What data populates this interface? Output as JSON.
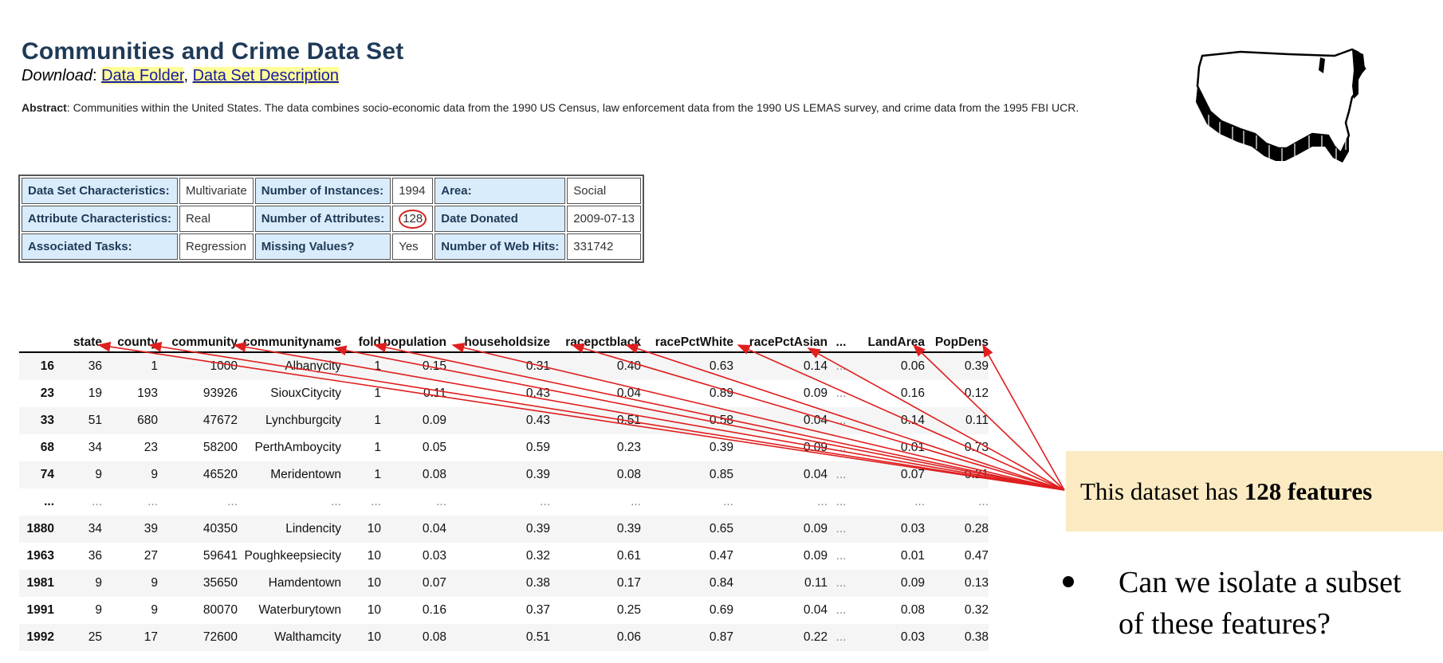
{
  "page": {
    "title": "Communities and Crime Data Set",
    "download_label": "Download",
    "download_links": [
      "Data Folder",
      "Data Set Description"
    ],
    "abstract_label": "Abstract",
    "abstract_text": ": Communities within the United States. The data combines socio-economic data from the 1990 US Census, law enforcement data from the 1990 US LEMAS survey, and crime data from the 1995 FBI UCR."
  },
  "info_table": {
    "rows": [
      [
        "Data Set Characteristics:",
        "Multivariate",
        "Number of Instances:",
        "1994",
        "Area:",
        "Social"
      ],
      [
        "Attribute Characteristics:",
        "Real",
        "Number of Attributes:",
        "128",
        "Date Donated",
        "2009-07-13"
      ],
      [
        "Associated Tasks:",
        "Regression",
        "Missing Values?",
        "Yes",
        "Number of Web Hits:",
        "331742"
      ]
    ],
    "highlight_color": "#d62020"
  },
  "dataframe": {
    "columns": [
      "",
      "state",
      "county",
      "community",
      "communityname",
      "fold",
      "population",
      "householdsize",
      "racepctblack",
      "racePctWhite",
      "racePctAsian",
      "...",
      "LandArea",
      "PopDens"
    ],
    "rows": [
      [
        "16",
        "36",
        "1",
        "1000",
        "Albanycity",
        "1",
        "0.15",
        "0.31",
        "0.40",
        "0.63",
        "0.14",
        "...",
        "0.06",
        "0.39"
      ],
      [
        "23",
        "19",
        "193",
        "93926",
        "SiouxCitycity",
        "1",
        "0.11",
        "0.43",
        "0.04",
        "0.89",
        "0.09",
        "...",
        "0.16",
        "0.12"
      ],
      [
        "33",
        "51",
        "680",
        "47672",
        "Lynchburgcity",
        "1",
        "0.09",
        "0.43",
        "0.51",
        "0.58",
        "0.04",
        "...",
        "0.14",
        "0.11"
      ],
      [
        "68",
        "34",
        "23",
        "58200",
        "PerthAmboycity",
        "1",
        "0.05",
        "0.59",
        "0.23",
        "0.39",
        "0.09",
        "...",
        "0.01",
        "0.73"
      ],
      [
        "74",
        "9",
        "9",
        "46520",
        "Meridentown",
        "1",
        "0.08",
        "0.39",
        "0.08",
        "0.85",
        "0.04",
        "...",
        "0.07",
        "0.21"
      ],
      [
        "...",
        "...",
        "...",
        "...",
        "...",
        "...",
        "...",
        "...",
        "...",
        "...",
        "...",
        "...",
        "...",
        "..."
      ],
      [
        "1880",
        "34",
        "39",
        "40350",
        "Lindencity",
        "10",
        "0.04",
        "0.39",
        "0.39",
        "0.65",
        "0.09",
        "...",
        "0.03",
        "0.28"
      ],
      [
        "1963",
        "36",
        "27",
        "59641",
        "Poughkeepsiecity",
        "10",
        "0.03",
        "0.32",
        "0.61",
        "0.47",
        "0.09",
        "...",
        "0.01",
        "0.47"
      ],
      [
        "1981",
        "9",
        "9",
        "35650",
        "Hamdentown",
        "10",
        "0.07",
        "0.38",
        "0.17",
        "0.84",
        "0.11",
        "...",
        "0.09",
        "0.13"
      ],
      [
        "1991",
        "9",
        "9",
        "80070",
        "Waterburytown",
        "10",
        "0.16",
        "0.37",
        "0.25",
        "0.69",
        "0.04",
        "...",
        "0.08",
        "0.32"
      ],
      [
        "1992",
        "25",
        "17",
        "72600",
        "Walthamcity",
        "10",
        "0.08",
        "0.51",
        "0.06",
        "0.87",
        "0.22",
        "...",
        "0.03",
        "0.38"
      ]
    ]
  },
  "callout": {
    "text_prefix": "This dataset has ",
    "text_bold": "128 features",
    "background": "#fcebc2",
    "arrow_color": "#e01e1e"
  },
  "bullet": {
    "lines": [
      "Can we isolate a subset",
      "of these features?"
    ]
  },
  "icons": {
    "map": "us-map-icon"
  }
}
